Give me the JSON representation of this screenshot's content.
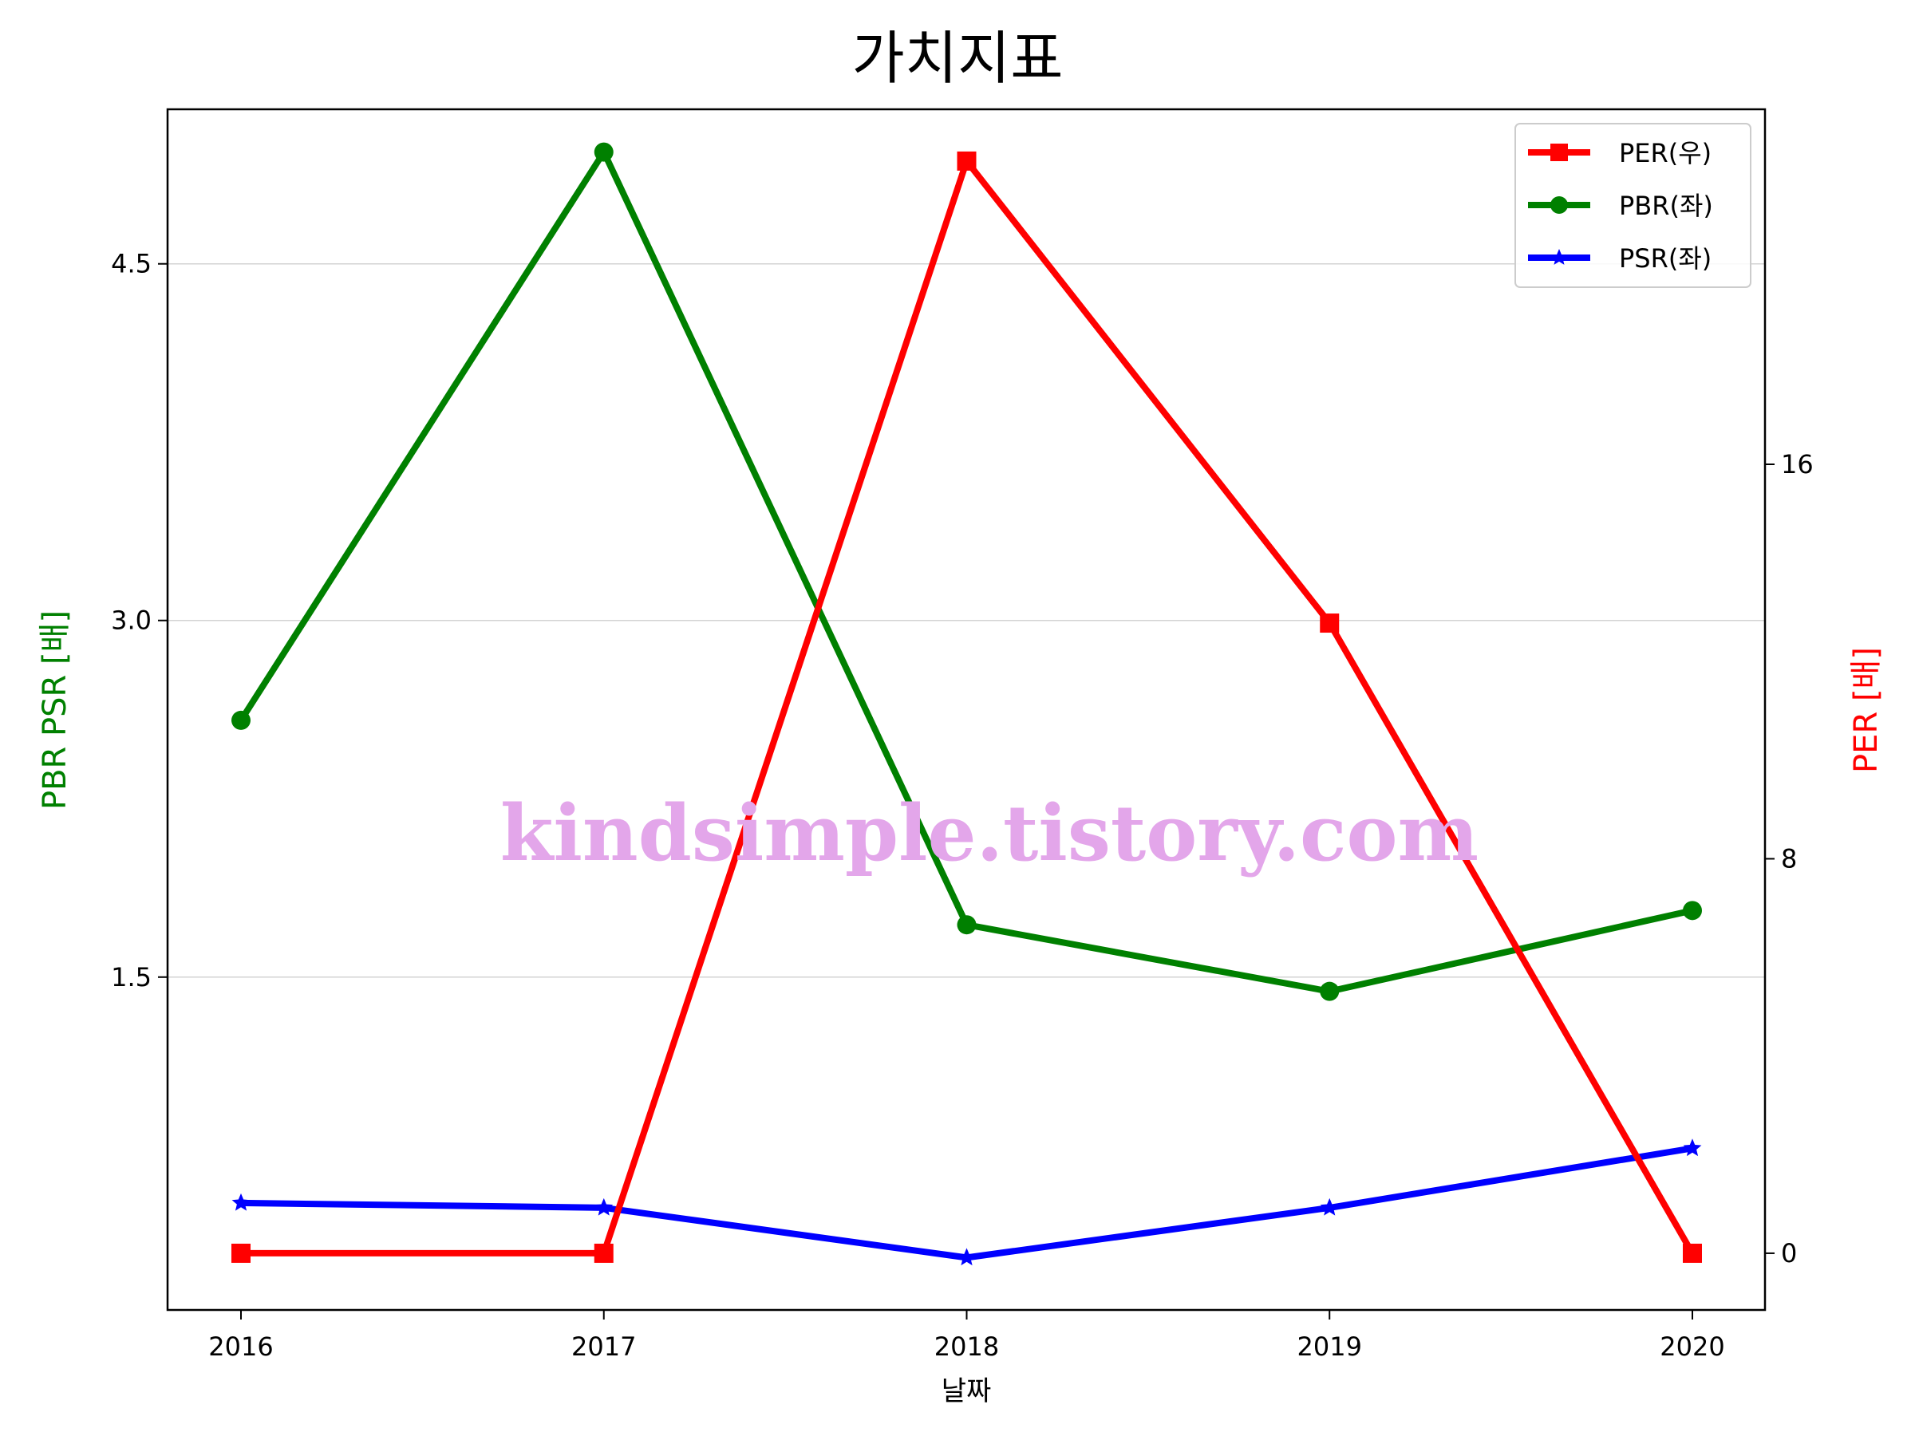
{
  "chart_data": {
    "type": "line",
    "title": "가치지표",
    "xlabel": "날짜",
    "ylabel_left": "PBR PSR [배]",
    "ylabel_right": "PER [배]",
    "categories": [
      "2016",
      "2017",
      "2018",
      "2019",
      "2020"
    ],
    "left_axis": {
      "ylim": [
        0.1,
        5.15
      ],
      "ticks": [
        1.5,
        3.0,
        4.5
      ],
      "tick_labels": [
        "1.5",
        "3.0",
        "4.5"
      ],
      "color": "#008000",
      "grid": true
    },
    "right_axis": {
      "ylim": [
        -1.15,
        23.2
      ],
      "ticks": [
        0,
        8,
        16
      ],
      "tick_labels": [
        "0",
        "8",
        "16"
      ],
      "color": "#ff0000"
    },
    "series": [
      {
        "name": "PER(우)",
        "axis": "right",
        "color": "#ff0000",
        "marker": "square",
        "values": [
          0.0,
          0.0,
          22.15,
          12.78,
          0.0
        ]
      },
      {
        "name": "PBR(좌)",
        "axis": "left",
        "color": "#008000",
        "marker": "circle",
        "values": [
          2.58,
          4.97,
          1.72,
          1.44,
          1.78
        ]
      },
      {
        "name": "PSR(좌)",
        "axis": "left",
        "color": "#0000ff",
        "marker": "star",
        "values": [
          0.55,
          0.53,
          0.32,
          0.53,
          0.78
        ]
      }
    ],
    "legend_position": "top-right",
    "watermark": "kindsimple.tistory.com"
  }
}
